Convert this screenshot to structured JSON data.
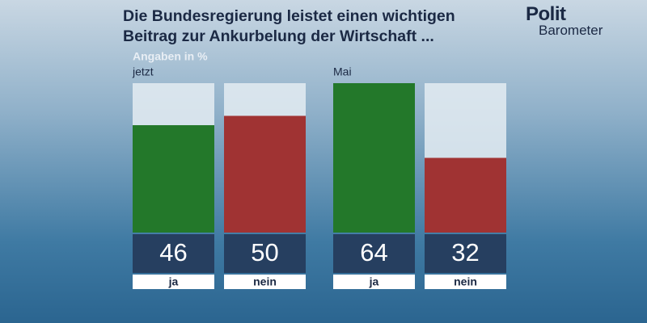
{
  "chart_data": {
    "type": "bar",
    "title": "Die Bundesregierung leistet einen wichtigen Beitrag zur Ankurbelung der Wirtschaft ...",
    "subtitle": "Angaben in %",
    "categories": [
      "ja",
      "nein"
    ],
    "colors": [
      "#23782a",
      "#a03333"
    ],
    "series": [
      {
        "name": "jetzt",
        "values": [
          46,
          50
        ]
      },
      {
        "name": "Mai",
        "values": [
          64,
          32
        ]
      }
    ]
  },
  "logo": {
    "top": "Polit",
    "bottom": "Barometer"
  }
}
